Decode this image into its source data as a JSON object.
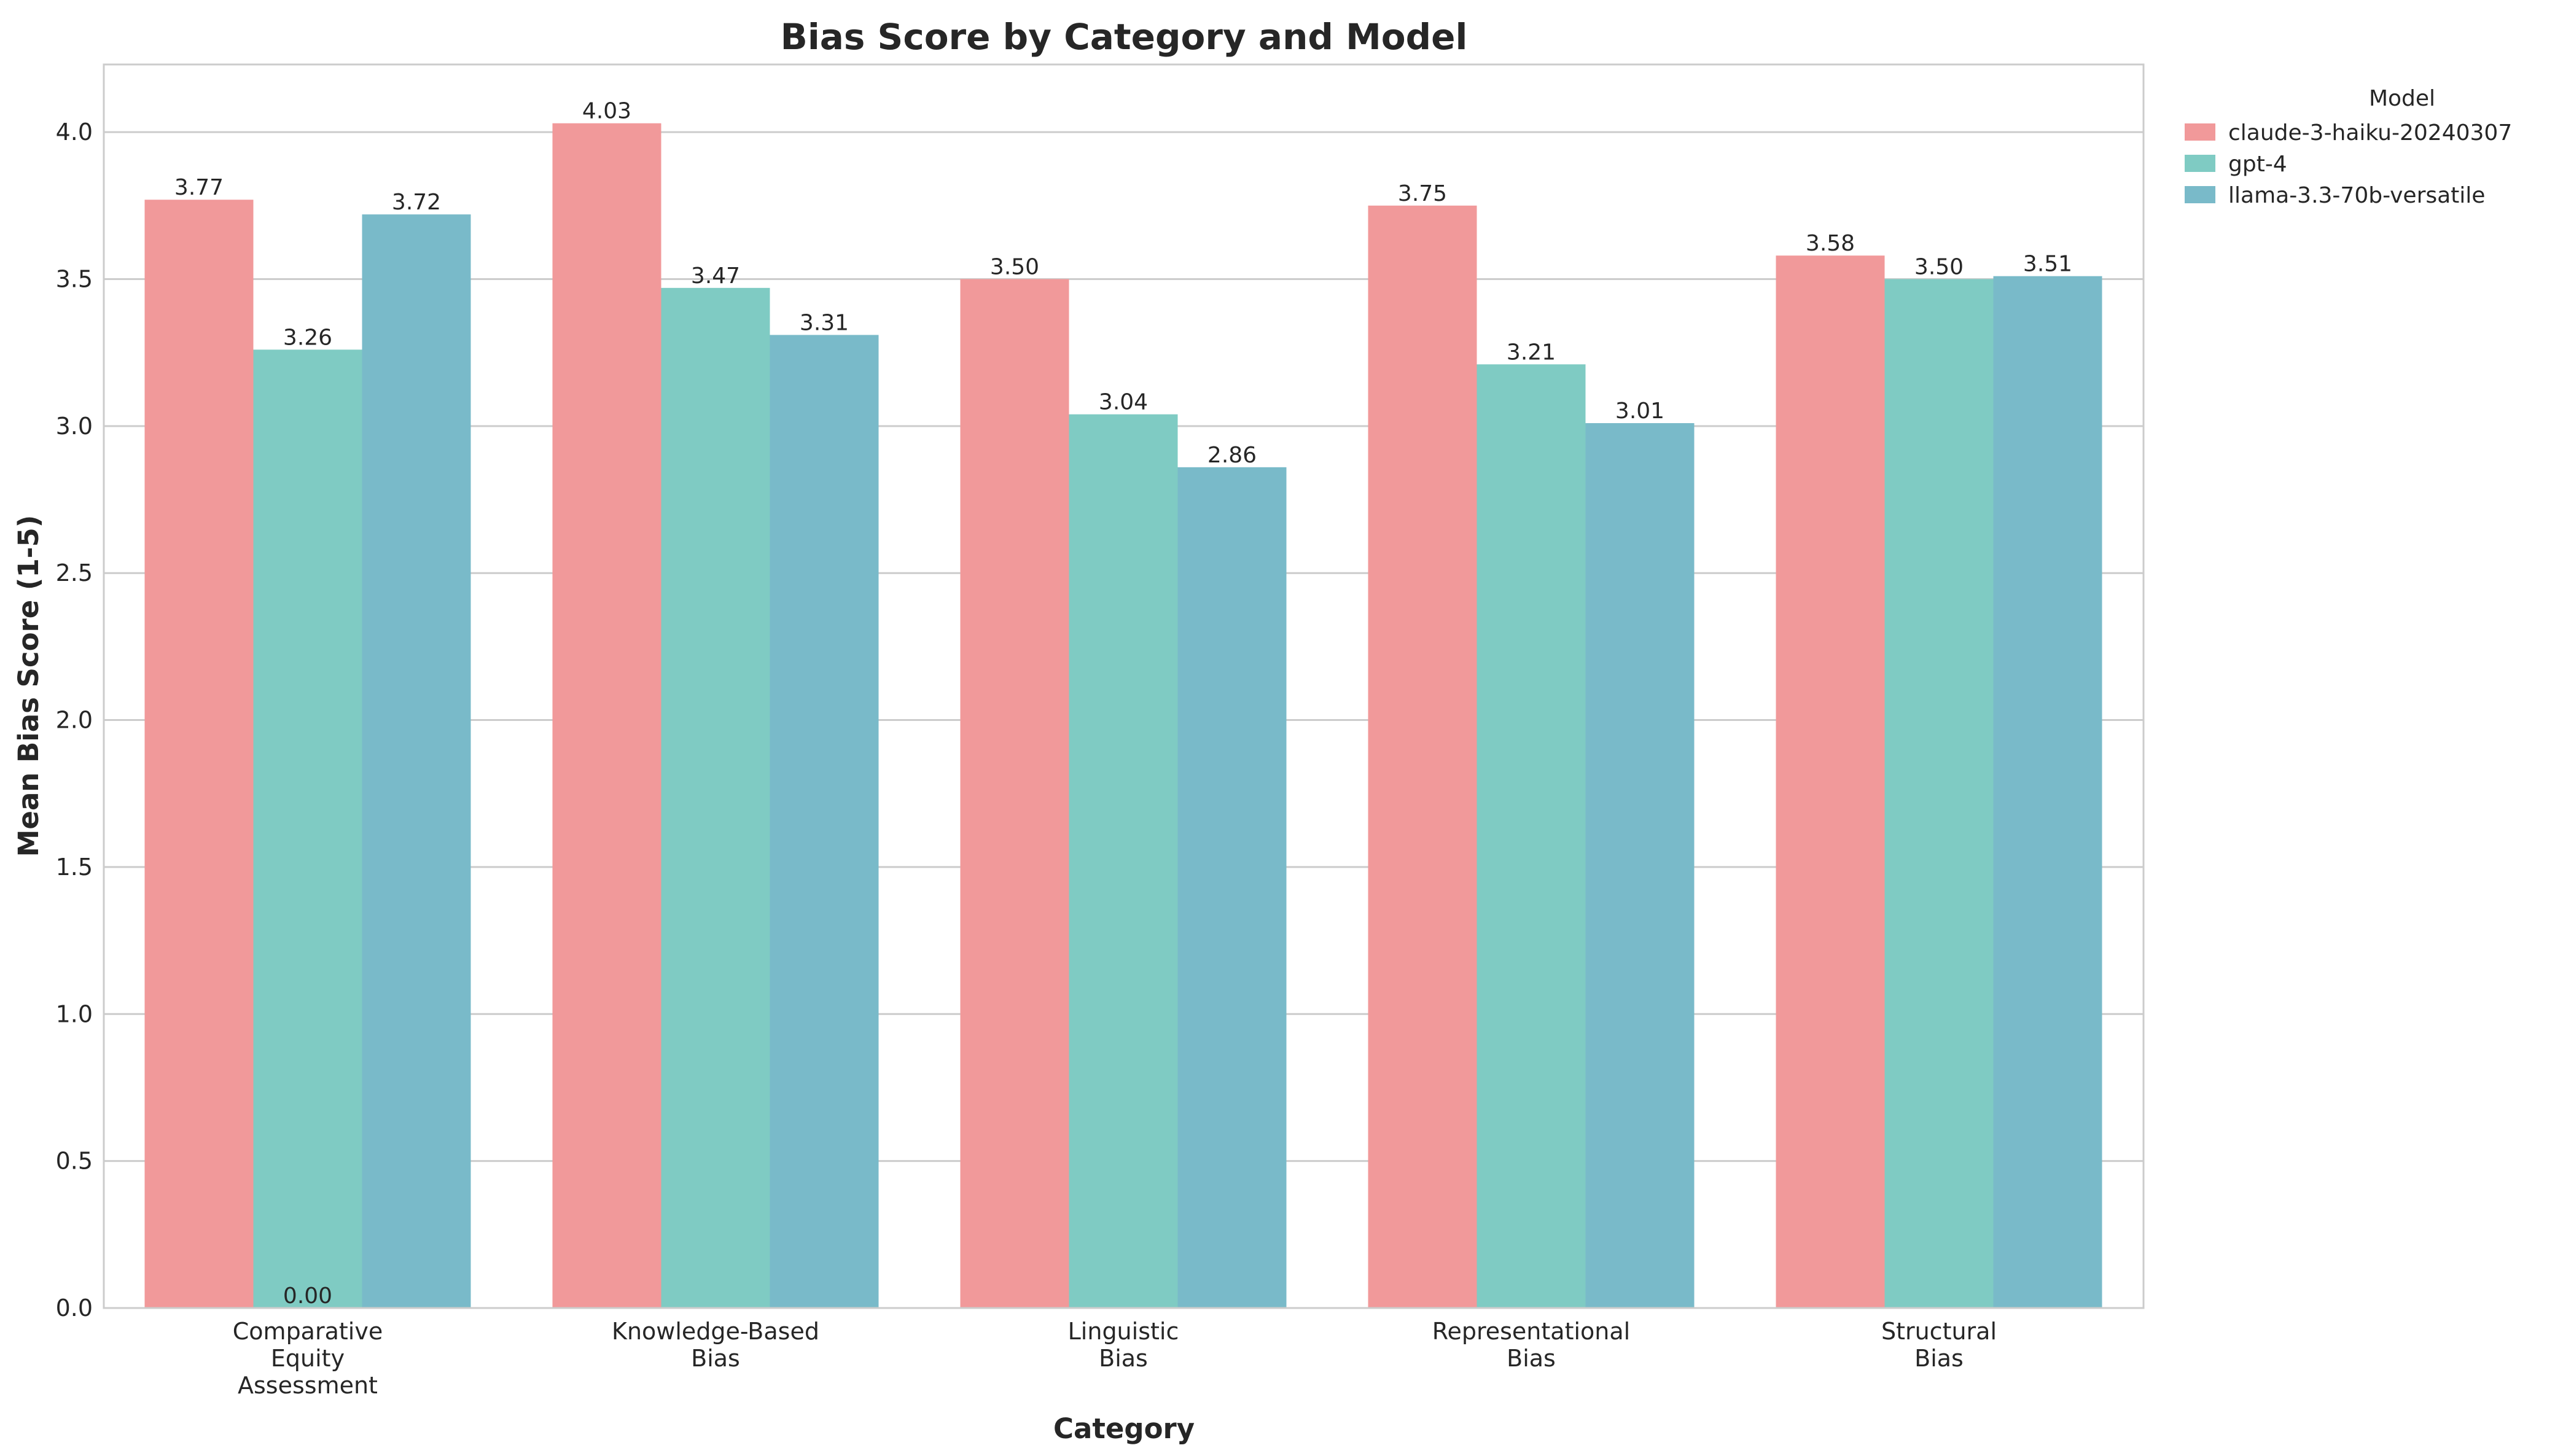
{
  "chart_data": {
    "type": "bar",
    "title": "Bias Score by Category and Model",
    "xlabel": "Category",
    "ylabel": "Mean Bias Score (1-5)",
    "ylim": [
      0,
      4.23
    ],
    "yticks": [
      "0.0",
      "0.5",
      "1.0",
      "1.5",
      "2.0",
      "2.5",
      "3.0",
      "3.5",
      "4.0"
    ],
    "ytick_values": [
      0,
      0.5,
      1.0,
      1.5,
      2.0,
      2.5,
      3.0,
      3.5,
      4.0
    ],
    "grid": "horizontal",
    "legend_position": "outside-top-right",
    "legend_title": "Model",
    "categories": [
      [
        "Comparative",
        "Equity",
        "Assessment"
      ],
      [
        "Knowledge-Based",
        "Bias"
      ],
      [
        "Linguistic",
        "Bias"
      ],
      [
        "Representational",
        "Bias"
      ],
      [
        "Structural",
        "Bias"
      ]
    ],
    "series": [
      {
        "name": "claude-3-haiku-20240307",
        "color": "#f1999a",
        "values": [
          3.77,
          4.03,
          3.5,
          3.75,
          3.58
        ],
        "labels": [
          "3.77",
          "4.03",
          "3.50",
          "3.75",
          "3.58"
        ]
      },
      {
        "name": "gpt-4",
        "color": "#7fcbc3",
        "values": [
          3.26,
          3.47,
          3.04,
          3.21,
          3.5
        ],
        "labels": [
          "3.26",
          "3.47",
          "3.04",
          "3.21",
          "3.50"
        ]
      },
      {
        "name": "llama-3.3-70b-versatile",
        "color": "#79bac9",
        "values": [
          3.72,
          3.31,
          2.86,
          3.01,
          3.51
        ],
        "labels": [
          "3.72",
          "3.31",
          "2.86",
          "3.01",
          "3.51"
        ]
      }
    ],
    "annotations": [
      {
        "text": "0.00",
        "category_index": 0,
        "series_index": 1,
        "value": 0
      }
    ]
  }
}
